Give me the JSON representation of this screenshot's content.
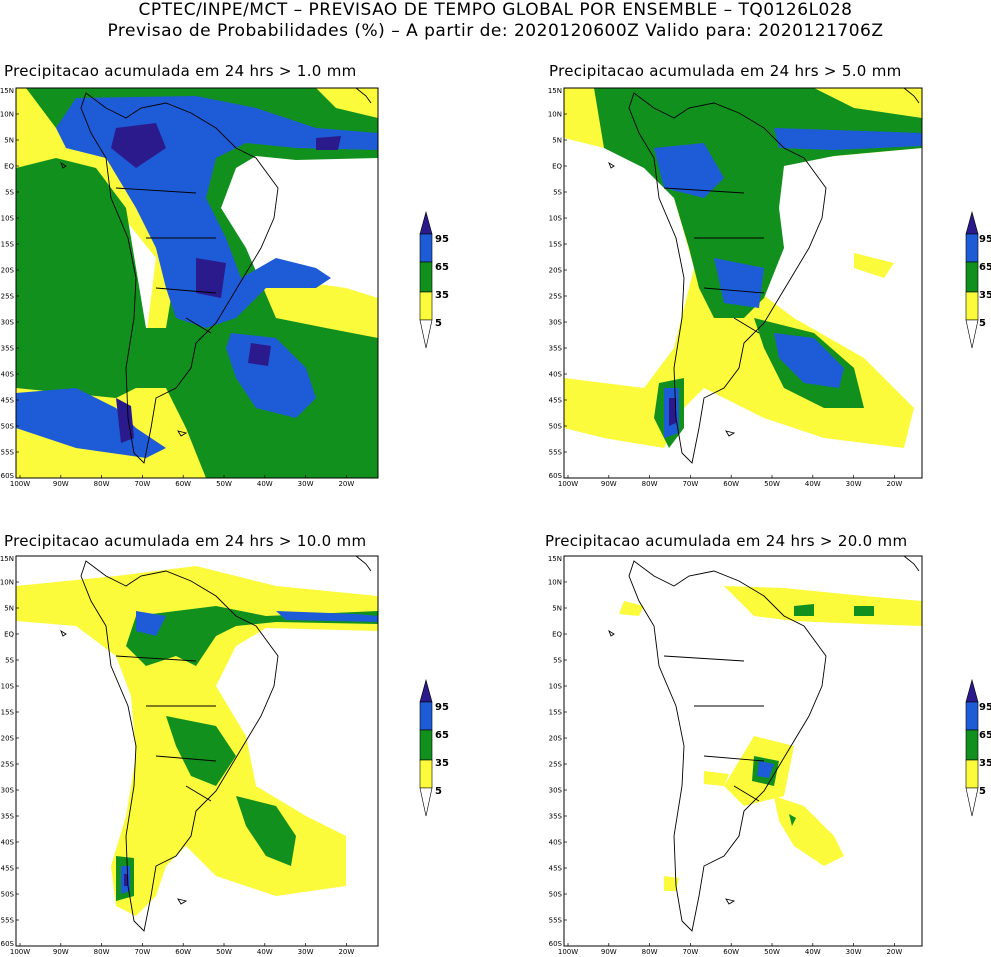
{
  "header": {
    "line1": "CPTEC/INPE/MCT – PREVISAO DE TEMPO GLOBAL POR ENSEMBLE – TQ0126L028",
    "line2": "Previsao de Probabilidades (%) –  A partir de: 2020120600Z  Valido para: 2020121706Z"
  },
  "panels": [
    {
      "title": "Precipitacao acumulada em 24 hrs > 1.0 mm",
      "threshold_mm": 1.0
    },
    {
      "title": "Precipitacao acumulada em 24 hrs > 5.0 mm",
      "threshold_mm": 5.0
    },
    {
      "title": "Precipitacao acumulada em 24 hrs > 10.0 mm",
      "threshold_mm": 10.0
    },
    {
      "title": "Precipitacao acumulada em 24 hrs > 20.0 mm",
      "threshold_mm": 20.0
    }
  ],
  "lat_labels": [
    "15N",
    "10N",
    "5N",
    "EQ",
    "5S",
    "10S",
    "15S",
    "20S",
    "25S",
    "30S",
    "35S",
    "40S",
    "45S",
    "50S",
    "55S",
    "60S"
  ],
  "lon_labels": [
    "100W",
    "90W",
    "80W",
    "70W",
    "60W",
    "50W",
    "40W",
    "30W",
    "20W"
  ],
  "colorbar": {
    "levels": [
      "95",
      "65",
      "35",
      "5"
    ],
    "colors": {
      "c95": "#2a1a8c",
      "c65": "#1e5bd6",
      "c35": "#12901e",
      "c5": "#fbfb3c"
    }
  },
  "colors": {
    "yellow": "#fbfb3c",
    "green": "#12901e",
    "blue": "#1e5bd6",
    "navy": "#2a1a8c",
    "coast": "#000000"
  }
}
